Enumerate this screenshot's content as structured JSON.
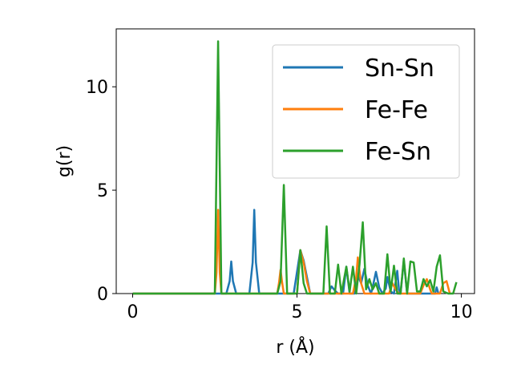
{
  "chart_data": {
    "type": "line",
    "xlabel": "r (Å)",
    "ylabel": "g(r)",
    "xlim": [
      -0.5,
      10.4
    ],
    "ylim": [
      0,
      12.8
    ],
    "x_ticks": [
      0,
      5,
      10
    ],
    "y_ticks": [
      0,
      5,
      10
    ],
    "grid": false,
    "legend_position": "top-right",
    "series": [
      {
        "name": "Sn-Sn",
        "color": "#1f77b4",
        "points": [
          [
            0,
            0
          ],
          [
            2.85,
            0
          ],
          [
            2.95,
            0.6
          ],
          [
            3.0,
            1.55
          ],
          [
            3.05,
            0.6
          ],
          [
            3.15,
            0
          ],
          [
            3.55,
            0
          ],
          [
            3.65,
            1.5
          ],
          [
            3.7,
            4.05
          ],
          [
            3.75,
            1.5
          ],
          [
            3.85,
            0
          ],
          [
            4.9,
            0
          ],
          [
            5.1,
            2.1
          ],
          [
            5.2,
            1.6
          ],
          [
            5.3,
            0.8
          ],
          [
            5.4,
            0
          ],
          [
            5.95,
            0
          ],
          [
            6.05,
            0.35
          ],
          [
            6.15,
            0.15
          ],
          [
            6.25,
            0
          ],
          [
            6.4,
            0
          ],
          [
            6.5,
            1.3
          ],
          [
            6.6,
            0
          ],
          [
            6.75,
            0
          ],
          [
            6.85,
            0.9
          ],
          [
            6.95,
            0.5
          ],
          [
            7.05,
            1.2
          ],
          [
            7.15,
            0.4
          ],
          [
            7.25,
            0
          ],
          [
            7.3,
            0.3
          ],
          [
            7.4,
            1.05
          ],
          [
            7.5,
            0.3
          ],
          [
            7.6,
            0
          ],
          [
            7.7,
            0.25
          ],
          [
            7.75,
            0.8
          ],
          [
            7.85,
            0.1
          ],
          [
            7.95,
            0
          ],
          [
            8.05,
            1.1
          ],
          [
            8.1,
            0.2
          ],
          [
            8.15,
            0
          ],
          [
            8.25,
            1.6
          ],
          [
            8.35,
            0
          ],
          [
            9.2,
            0
          ],
          [
            9.25,
            0.3
          ],
          [
            9.3,
            0
          ]
        ]
      },
      {
        "name": "Fe-Fe",
        "color": "#ff7f0e",
        "points": [
          [
            0,
            0
          ],
          [
            2.5,
            0
          ],
          [
            2.55,
            1.0
          ],
          [
            2.6,
            4.05
          ],
          [
            2.65,
            1.0
          ],
          [
            2.7,
            0
          ],
          [
            4.4,
            0
          ],
          [
            4.45,
            0.5
          ],
          [
            4.5,
            1.15
          ],
          [
            4.55,
            0.5
          ],
          [
            4.6,
            0
          ],
          [
            5.0,
            0
          ],
          [
            5.05,
            1.1
          ],
          [
            5.1,
            2.1
          ],
          [
            5.2,
            1.5
          ],
          [
            5.3,
            0.6
          ],
          [
            5.4,
            0
          ],
          [
            6.7,
            0
          ],
          [
            6.8,
            0.8
          ],
          [
            6.85,
            1.75
          ],
          [
            6.95,
            0.5
          ],
          [
            7.05,
            0
          ],
          [
            7.8,
            0
          ],
          [
            7.9,
            0.5
          ],
          [
            8.0,
            0.2
          ],
          [
            8.1,
            0
          ],
          [
            8.75,
            0
          ],
          [
            8.85,
            0.4
          ],
          [
            8.95,
            0.7
          ],
          [
            9.05,
            0.2
          ],
          [
            9.1,
            0
          ],
          [
            9.35,
            0
          ],
          [
            9.45,
            0.5
          ],
          [
            9.55,
            0.6
          ],
          [
            9.65,
            0
          ]
        ]
      },
      {
        "name": "Fe-Sn",
        "color": "#2ca02c",
        "points": [
          [
            0,
            0
          ],
          [
            2.5,
            0
          ],
          [
            2.6,
            12.2
          ],
          [
            2.7,
            0
          ],
          [
            4.4,
            0
          ],
          [
            4.5,
            0.6
          ],
          [
            4.6,
            5.25
          ],
          [
            4.7,
            0
          ],
          [
            5.0,
            0
          ],
          [
            5.1,
            2.1
          ],
          [
            5.2,
            0.5
          ],
          [
            5.3,
            0
          ],
          [
            5.8,
            0
          ],
          [
            5.9,
            3.25
          ],
          [
            6.0,
            0
          ],
          [
            6.15,
            0
          ],
          [
            6.25,
            1.4
          ],
          [
            6.35,
            0
          ],
          [
            6.5,
            1.3
          ],
          [
            6.6,
            0.1
          ],
          [
            6.7,
            1.3
          ],
          [
            6.8,
            0
          ],
          [
            6.9,
            1.4
          ],
          [
            7.0,
            3.45
          ],
          [
            7.1,
            0.2
          ],
          [
            7.2,
            0.7
          ],
          [
            7.3,
            0.2
          ],
          [
            7.4,
            0.5
          ],
          [
            7.5,
            0
          ],
          [
            7.65,
            0
          ],
          [
            7.75,
            1.9
          ],
          [
            7.85,
            0.1
          ],
          [
            7.95,
            1.35
          ],
          [
            8.05,
            0
          ],
          [
            8.15,
            0
          ],
          [
            8.25,
            1.7
          ],
          [
            8.35,
            0
          ],
          [
            8.45,
            1.55
          ],
          [
            8.55,
            1.5
          ],
          [
            8.65,
            0.1
          ],
          [
            8.75,
            0.1
          ],
          [
            8.85,
            0.7
          ],
          [
            8.95,
            0.35
          ],
          [
            9.05,
            0.65
          ],
          [
            9.15,
            0.1
          ],
          [
            9.25,
            1.3
          ],
          [
            9.35,
            1.85
          ],
          [
            9.45,
            0.1
          ],
          [
            9.6,
            0
          ],
          [
            9.75,
            0
          ],
          [
            9.85,
            0.55
          ]
        ]
      }
    ]
  }
}
